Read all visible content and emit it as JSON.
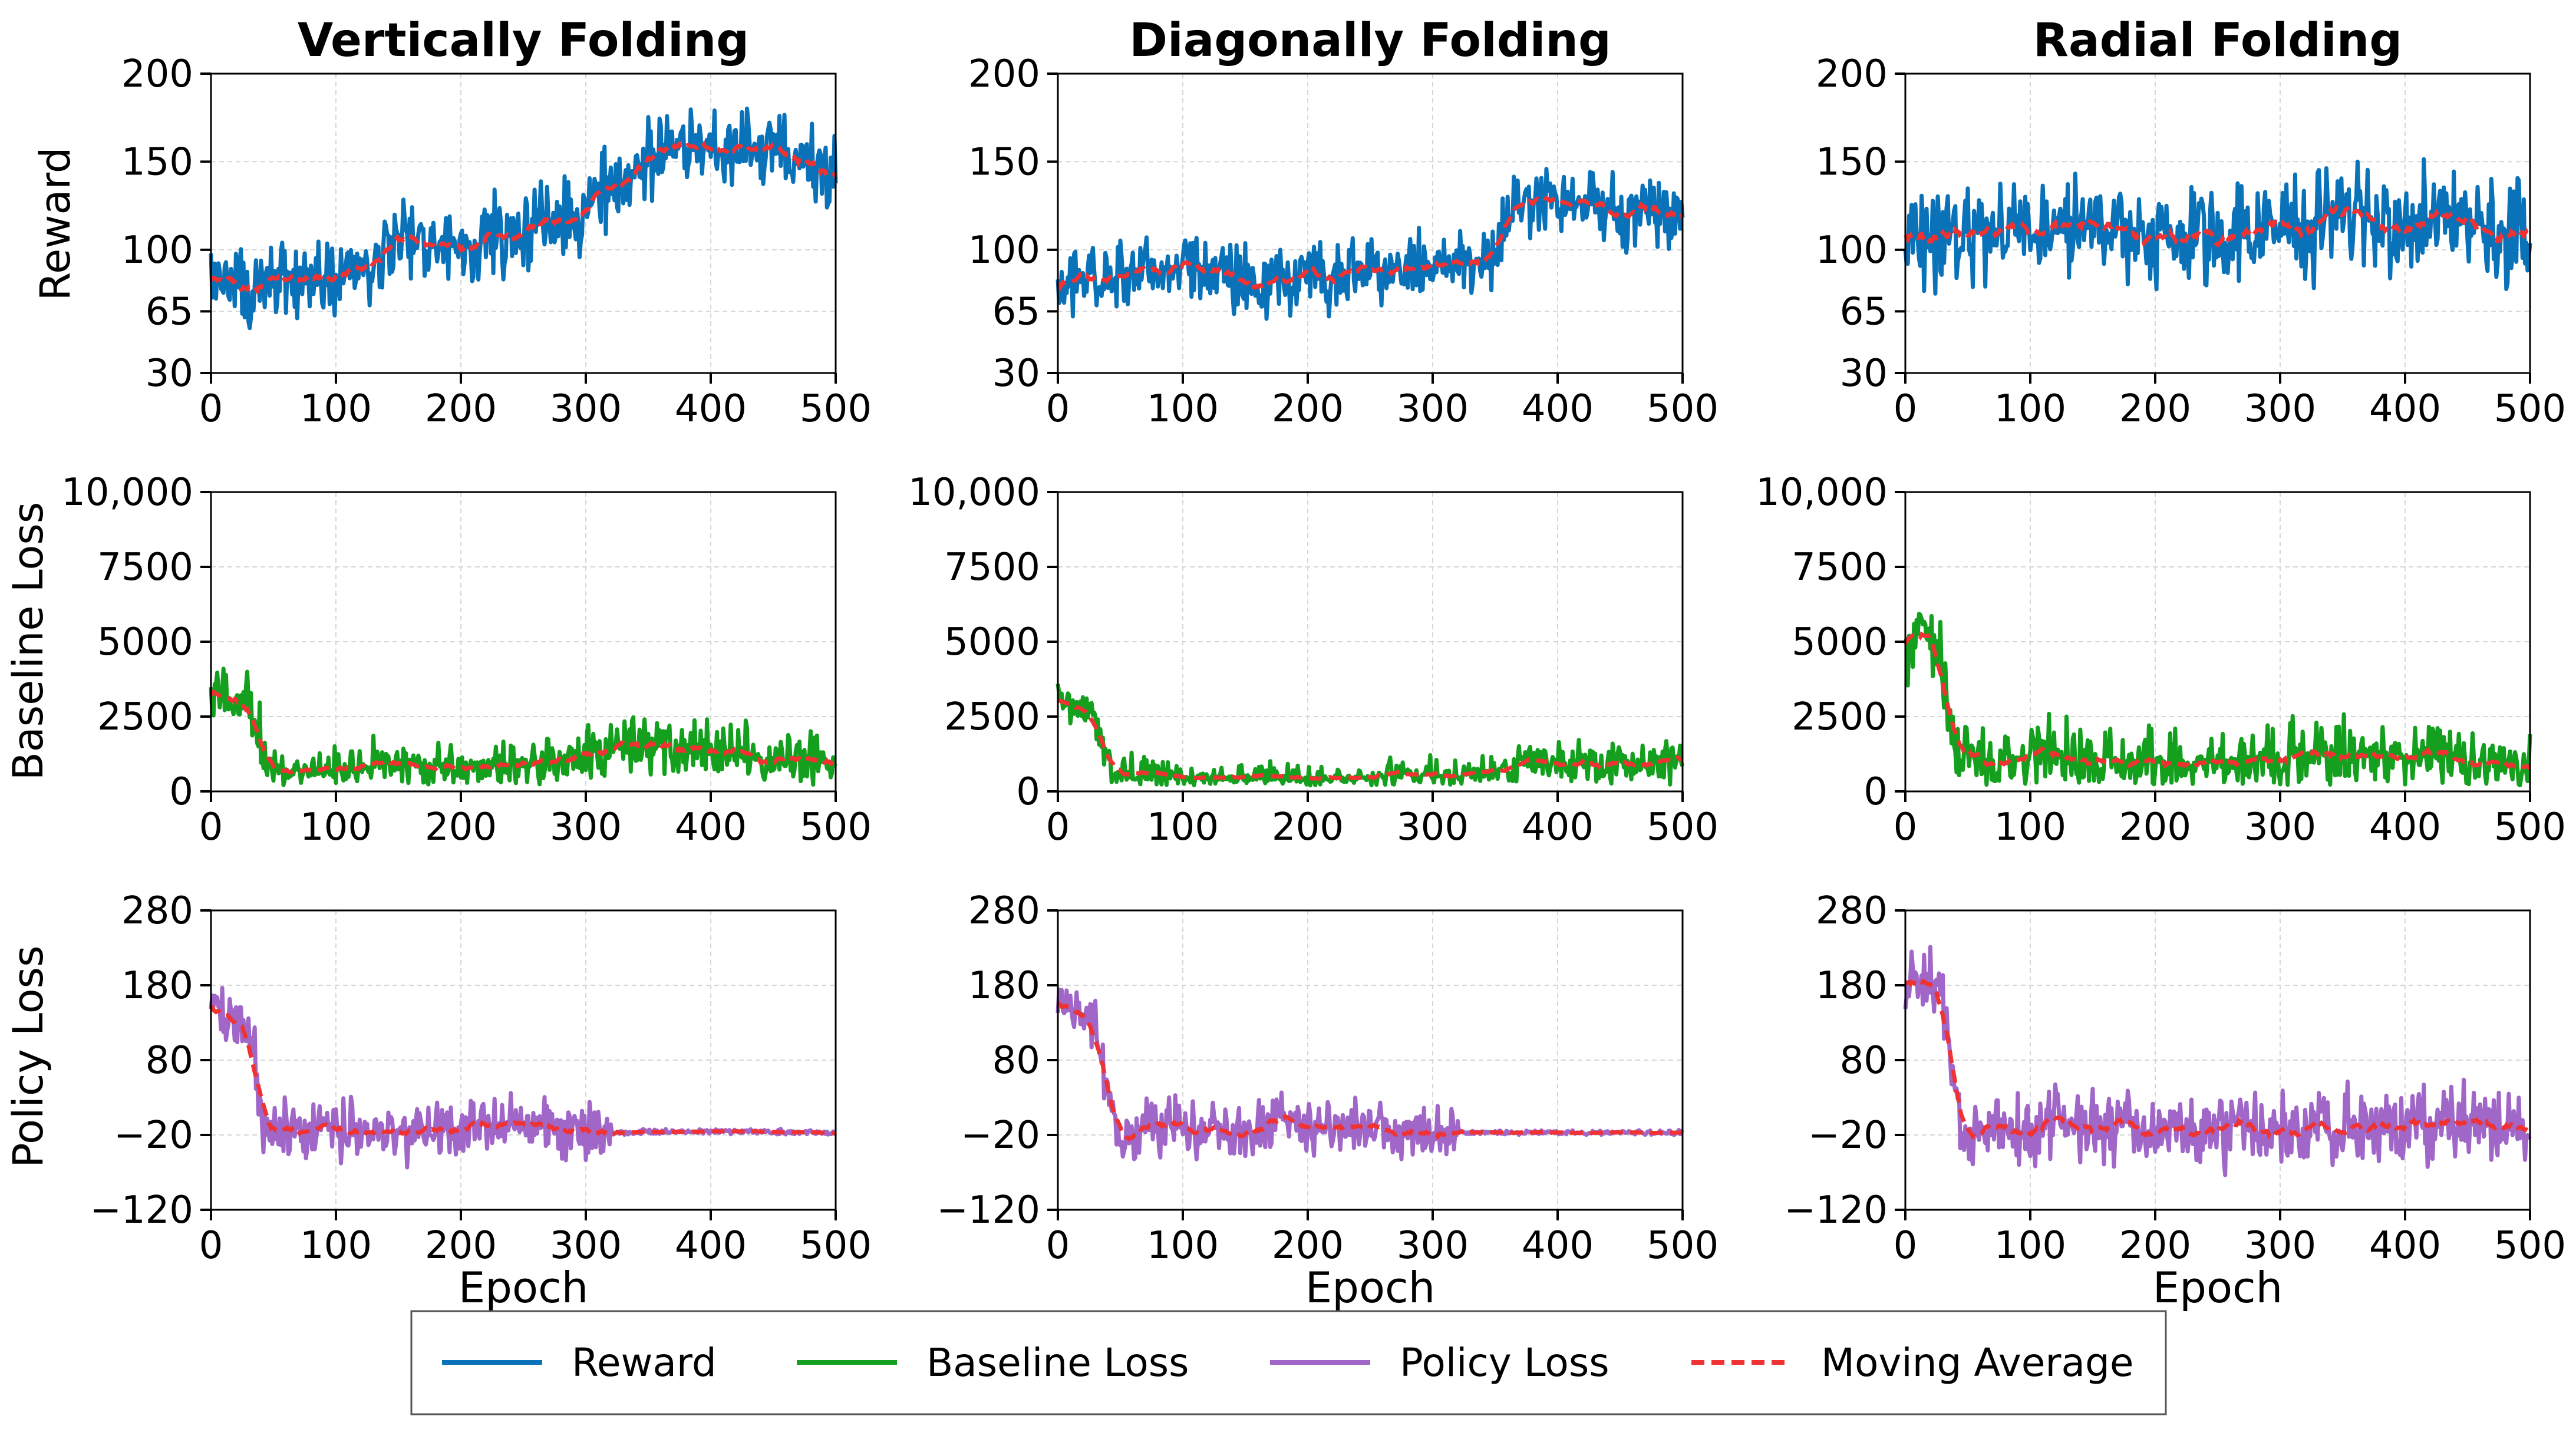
{
  "chart_data": {
    "type": "line",
    "columns": [
      "Vertically Folding",
      "Diagonally Folding",
      "Radial Folding"
    ],
    "rows": [
      {
        "key": "reward",
        "ylabel": "Reward",
        "series_name": "Reward",
        "color": "#0a72b8",
        "ylim": [
          30,
          200
        ],
        "yticks": [
          30,
          65,
          100,
          150,
          200
        ],
        "ytick_labels": [
          "30",
          "65",
          "100",
          "150",
          "200"
        ]
      },
      {
        "key": "baseline",
        "ylabel": "Baseline Loss",
        "series_name": "Baseline Loss",
        "color": "#14a01e",
        "ylim": [
          0,
          10000
        ],
        "yticks": [
          0,
          2500,
          5000,
          7500,
          10000
        ],
        "ytick_labels": [
          "0",
          "2500",
          "5000",
          "7500",
          "10,000"
        ]
      },
      {
        "key": "policy",
        "ylabel": "Policy Loss",
        "series_name": "Policy Loss",
        "color": "#a066c8",
        "ylim": [
          -120,
          280
        ],
        "yticks": [
          -120,
          -20,
          80,
          180,
          280
        ],
        "ytick_labels": [
          "−120",
          "−20",
          "80",
          "180",
          "280"
        ]
      }
    ],
    "xlim": [
      0,
      500
    ],
    "xticks": [
      0,
      100,
      200,
      300,
      400,
      500
    ],
    "xtick_labels": [
      "0",
      "100",
      "200",
      "300",
      "400",
      "500"
    ],
    "xlabel": "Epoch",
    "grid": true,
    "moving_average": {
      "name": "Moving Average",
      "color": "#f03232",
      "style": "dashed"
    },
    "legend": {
      "placement": "bottom-center",
      "entries": [
        {
          "label": "Reward",
          "color": "#0a72b8",
          "style": "solid"
        },
        {
          "label": "Baseline Loss",
          "color": "#14a01e",
          "style": "solid"
        },
        {
          "label": "Policy Loss",
          "color": "#a066c8",
          "style": "solid"
        },
        {
          "label": "Moving Average",
          "color": "#f03232",
          "style": "dashed"
        }
      ]
    },
    "panels": [
      {
        "row": "reward",
        "col": 0,
        "noise": 15,
        "trend": [
          [
            0,
            85
          ],
          [
            30,
            80
          ],
          [
            60,
            82
          ],
          [
            100,
            85
          ],
          [
            130,
            92
          ],
          [
            150,
            108
          ],
          [
            200,
            103
          ],
          [
            250,
            110
          ],
          [
            300,
            125
          ],
          [
            330,
            140
          ],
          [
            360,
            158
          ],
          [
            400,
            155
          ],
          [
            450,
            158
          ],
          [
            500,
            140
          ]
        ]
      },
      {
        "row": "reward",
        "col": 1,
        "noise": 13,
        "trend": [
          [
            0,
            80
          ],
          [
            50,
            88
          ],
          [
            100,
            90
          ],
          [
            150,
            85
          ],
          [
            180,
            78
          ],
          [
            200,
            85
          ],
          [
            250,
            90
          ],
          [
            300,
            92
          ],
          [
            350,
            96
          ],
          [
            360,
            122
          ],
          [
            380,
            127
          ],
          [
            400,
            126
          ],
          [
            450,
            120
          ],
          [
            500,
            120
          ]
        ]
      },
      {
        "row": "reward",
        "col": 2,
        "noise": 20,
        "trend": [
          [
            0,
            108
          ],
          [
            50,
            112
          ],
          [
            100,
            112
          ],
          [
            160,
            118
          ],
          [
            200,
            104
          ],
          [
            250,
            110
          ],
          [
            300,
            115
          ],
          [
            350,
            120
          ],
          [
            400,
            112
          ],
          [
            450,
            120
          ],
          [
            500,
            106
          ]
        ]
      },
      {
        "row": "baseline",
        "col": 0,
        "noise": 700,
        "trend": [
          [
            0,
            3200
          ],
          [
            30,
            3000
          ],
          [
            45,
            800
          ],
          [
            60,
            400
          ],
          [
            100,
            450
          ],
          [
            150,
            700
          ],
          [
            200,
            750
          ],
          [
            250,
            800
          ],
          [
            300,
            1200
          ],
          [
            360,
            1550
          ],
          [
            400,
            1500
          ],
          [
            450,
            1200
          ],
          [
            500,
            1000
          ]
        ]
      },
      {
        "row": "baseline",
        "col": 1,
        "noise": 500,
        "trend": [
          [
            0,
            3000
          ],
          [
            30,
            2700
          ],
          [
            42,
            600
          ],
          [
            60,
            350
          ],
          [
            100,
            350
          ],
          [
            200,
            300
          ],
          [
            300,
            420
          ],
          [
            350,
            500
          ],
          [
            375,
            1000
          ],
          [
            400,
            1000
          ],
          [
            450,
            950
          ],
          [
            500,
            880
          ]
        ]
      },
      {
        "row": "baseline",
        "col": 2,
        "noise": 900,
        "trend": [
          [
            0,
            4500
          ],
          [
            15,
            5200
          ],
          [
            30,
            4200
          ],
          [
            40,
            1000
          ],
          [
            60,
            750
          ],
          [
            100,
            900
          ],
          [
            150,
            900
          ],
          [
            200,
            750
          ],
          [
            300,
            850
          ],
          [
            350,
            1000
          ],
          [
            400,
            850
          ],
          [
            450,
            800
          ],
          [
            500,
            700
          ]
        ]
      },
      {
        "row": "policy",
        "col": 0,
        "noise": 28,
        "trend": [
          [
            0,
            150
          ],
          [
            30,
            130
          ],
          [
            45,
            -40
          ],
          [
            60,
            -10
          ],
          [
            100,
            -10
          ],
          [
            150,
            -20
          ],
          [
            200,
            -10
          ],
          [
            250,
            -5
          ],
          [
            300,
            -15
          ],
          [
            320,
            -17
          ],
          [
            400,
            -15
          ],
          [
            500,
            -17
          ]
        ]
      },
      {
        "row": "policy",
        "col": 1,
        "noise": 25,
        "trend": [
          [
            0,
            160
          ],
          [
            30,
            130
          ],
          [
            50,
            -40
          ],
          [
            70,
            -5
          ],
          [
            100,
            -15
          ],
          [
            150,
            -15
          ],
          [
            200,
            -5
          ],
          [
            250,
            -10
          ],
          [
            300,
            -15
          ],
          [
            370,
            -17
          ],
          [
            500,
            -17
          ]
        ]
      },
      {
        "row": "policy",
        "col": 2,
        "noise": 32,
        "trend": [
          [
            0,
            190
          ],
          [
            30,
            170
          ],
          [
            45,
            -30
          ],
          [
            70,
            -10
          ],
          [
            100,
            -10
          ],
          [
            160,
            -5
          ],
          [
            200,
            -15
          ],
          [
            300,
            -10
          ],
          [
            400,
            -10
          ],
          [
            450,
            0
          ],
          [
            500,
            -25
          ]
        ]
      }
    ]
  }
}
